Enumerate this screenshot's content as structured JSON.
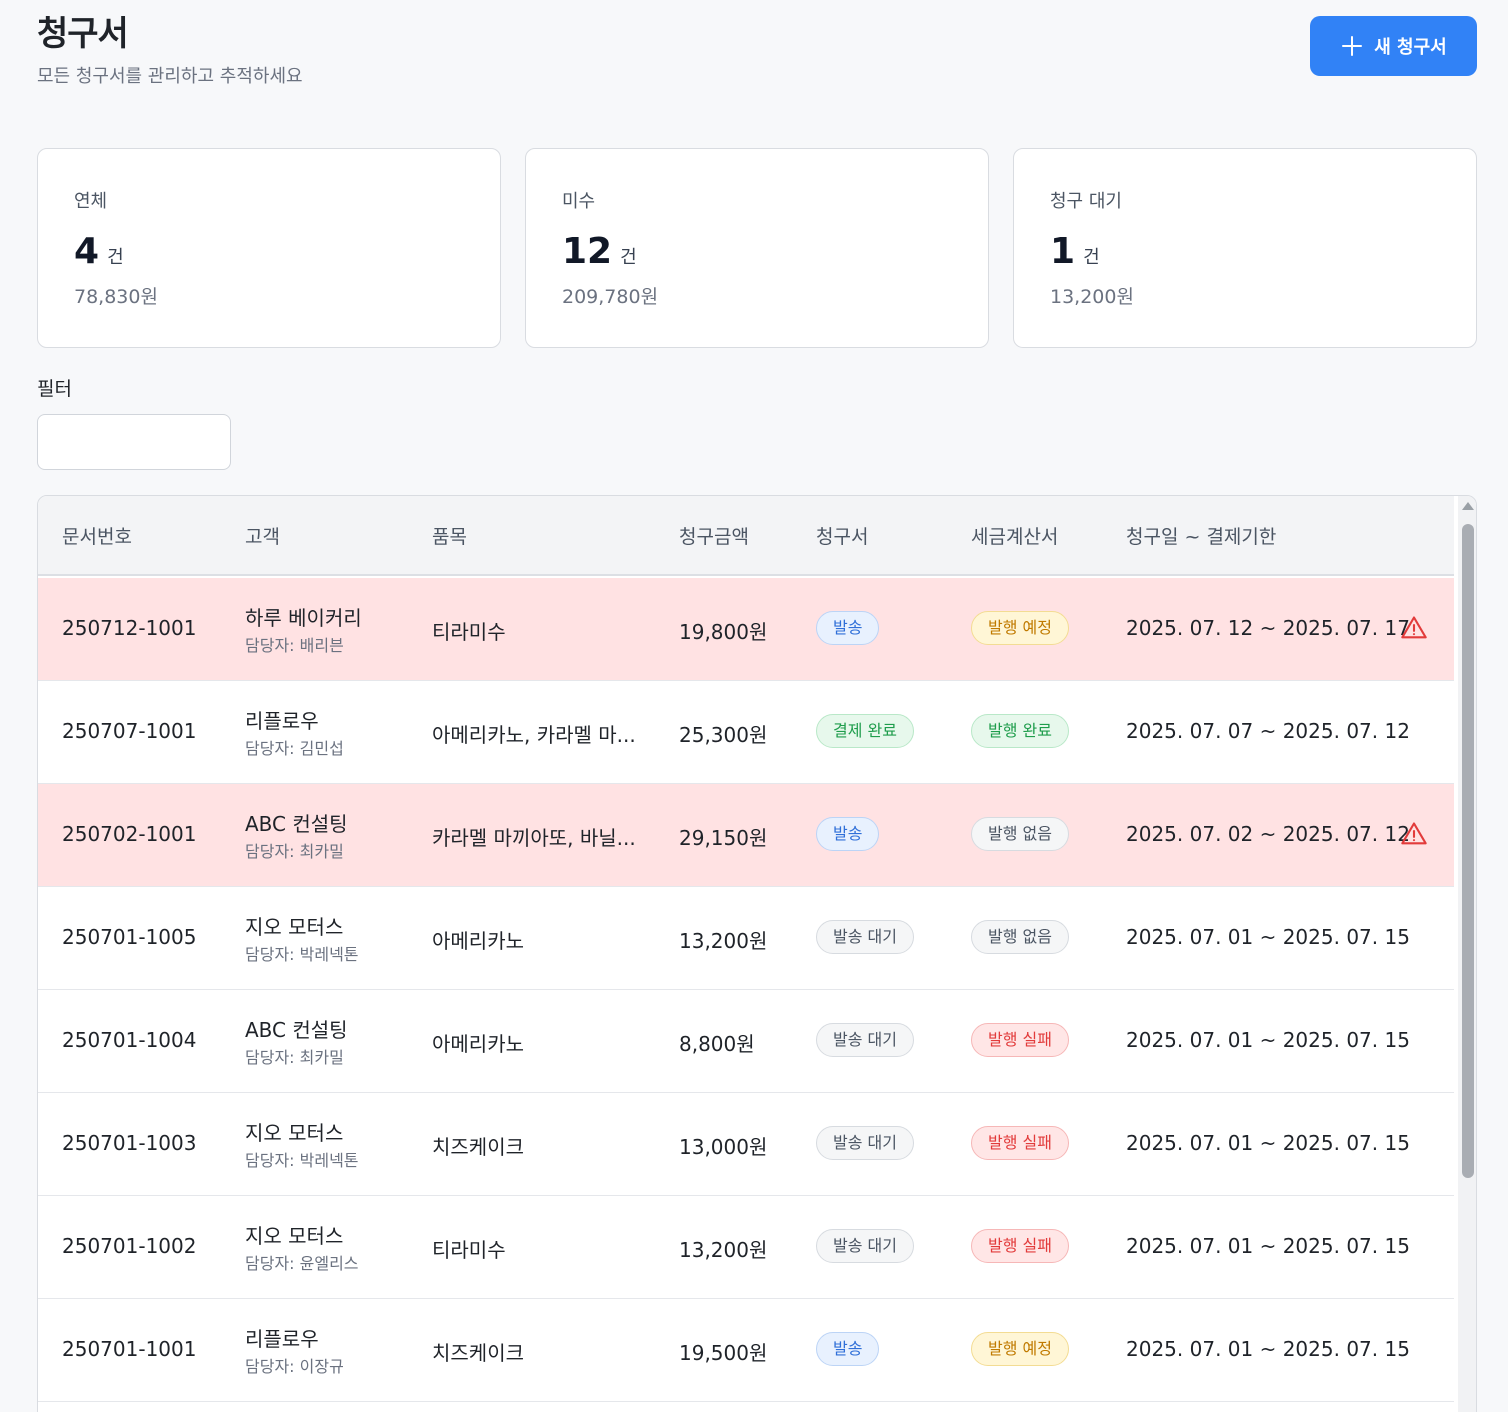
{
  "header": {
    "title": "청구서",
    "subtitle": "모든 청구서를 관리하고 추적하세요",
    "new_button_label": "새 청구서"
  },
  "summary": [
    {
      "label": "연체",
      "count": "4",
      "unit": "건",
      "amount": "78,830원"
    },
    {
      "label": "미수",
      "count": "12",
      "unit": "건",
      "amount": "209,780원"
    },
    {
      "label": "청구 대기",
      "count": "1",
      "unit": "건",
      "amount": "13,200원"
    }
  ],
  "filter": {
    "label": "필터",
    "value": ""
  },
  "table": {
    "columns": [
      "문서번호",
      "고객",
      "품목",
      "청구금액",
      "청구서",
      "세금계산서",
      "청구일 ~ 결제기한"
    ],
    "rows": [
      {
        "id": "250712-1001",
        "customer": "하루 베이커리",
        "manager": "담당자: 배리븐",
        "item": "티라미수",
        "amount": "19,800원",
        "invoice": "발송",
        "invoice_tone": "blue",
        "tax": "발행 예정",
        "tax_tone": "yellow",
        "dates": "2025. 07. 12 ~ 2025. 07. 17",
        "overdue": true
      },
      {
        "id": "250707-1001",
        "customer": "리플로우",
        "manager": "담당자: 김민섭",
        "item": "아메리카노, 카라멜 마...",
        "amount": "25,300원",
        "invoice": "결제 완료",
        "invoice_tone": "green",
        "tax": "발행 완료",
        "tax_tone": "green",
        "dates": "2025. 07. 07 ~ 2025. 07. 12",
        "overdue": false
      },
      {
        "id": "250702-1001",
        "customer": "ABC 컨설팅",
        "manager": "담당자: 최카밀",
        "item": "카라멜 마끼아또, 바닐...",
        "amount": "29,150원",
        "invoice": "발송",
        "invoice_tone": "blue",
        "tax": "발행 없음",
        "tax_tone": "gray",
        "dates": "2025. 07. 02 ~ 2025. 07. 12",
        "overdue": true
      },
      {
        "id": "250701-1005",
        "customer": "지오 모터스",
        "manager": "담당자: 박레넥톤",
        "item": "아메리카노",
        "amount": "13,200원",
        "invoice": "발송 대기",
        "invoice_tone": "gray",
        "tax": "발행 없음",
        "tax_tone": "gray",
        "dates": "2025. 07. 01 ~ 2025. 07. 15",
        "overdue": false
      },
      {
        "id": "250701-1004",
        "customer": "ABC 컨설팅",
        "manager": "담당자: 최카밀",
        "item": "아메리카노",
        "amount": "8,800원",
        "invoice": "발송 대기",
        "invoice_tone": "gray",
        "tax": "발행 실패",
        "tax_tone": "red",
        "dates": "2025. 07. 01 ~ 2025. 07. 15",
        "overdue": false
      },
      {
        "id": "250701-1003",
        "customer": "지오 모터스",
        "manager": "담당자: 박레넥톤",
        "item": "치즈케이크",
        "amount": "13,000원",
        "invoice": "발송 대기",
        "invoice_tone": "gray",
        "tax": "발행 실패",
        "tax_tone": "red",
        "dates": "2025. 07. 01 ~ 2025. 07. 15",
        "overdue": false
      },
      {
        "id": "250701-1002",
        "customer": "지오 모터스",
        "manager": "담당자: 윤엘리스",
        "item": "티라미수",
        "amount": "13,200원",
        "invoice": "발송 대기",
        "invoice_tone": "gray",
        "tax": "발행 실패",
        "tax_tone": "red",
        "dates": "2025. 07. 01 ~ 2025. 07. 15",
        "overdue": false
      },
      {
        "id": "250701-1001",
        "customer": "리플로우",
        "manager": "담당자: 이장규",
        "item": "치즈케이크",
        "amount": "19,500원",
        "invoice": "발송",
        "invoice_tone": "blue",
        "tax": "발행 예정",
        "tax_tone": "yellow",
        "dates": "2025. 07. 01 ~ 2025. 07. 15",
        "overdue": false
      }
    ]
  },
  "colors": {
    "primary": "#3182f6",
    "overdue_row": "#ffe2e3",
    "warning": "#e23b3b"
  }
}
